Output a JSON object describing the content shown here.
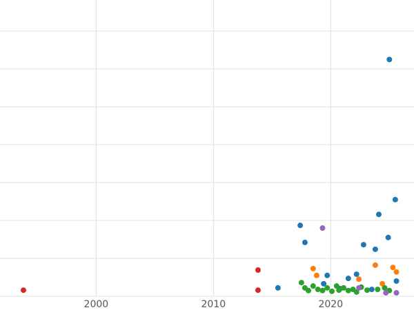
{
  "chart_data": {
    "type": "scatter",
    "title": "",
    "xlabel": "",
    "ylabel": "",
    "grid": true,
    "grid_color": "#e0e0e0",
    "tick_color": "#555555",
    "background": "#ffffff",
    "xlim": [
      1991.8,
      2027.1
    ],
    "ylim": [
      0,
      7.82
    ],
    "x_ticks": [
      {
        "label": "2000",
        "value": 2000
      },
      {
        "label": "2010",
        "value": 2010
      },
      {
        "label": "2020",
        "value": 2020
      }
    ],
    "legend": "none",
    "series": [
      {
        "name": "blue",
        "color": "#1f77b4",
        "points": [
          {
            "x": 2015.5,
            "y": 0.22
          },
          {
            "x": 2025.0,
            "y": 6.25
          },
          {
            "x": 2017.4,
            "y": 1.87
          },
          {
            "x": 2017.8,
            "y": 1.42
          },
          {
            "x": 2022.8,
            "y": 1.36
          },
          {
            "x": 2023.8,
            "y": 1.24
          },
          {
            "x": 2024.1,
            "y": 2.16
          },
          {
            "x": 2025.5,
            "y": 2.55
          },
          {
            "x": 2024.9,
            "y": 1.55
          },
          {
            "x": 2022.2,
            "y": 0.58
          },
          {
            "x": 2021.5,
            "y": 0.47
          },
          {
            "x": 2019.7,
            "y": 0.55
          },
          {
            "x": 2023.5,
            "y": 0.18
          },
          {
            "x": 2025.6,
            "y": 0.4
          },
          {
            "x": 2019.4,
            "y": 0.33
          },
          {
            "x": 2020.8,
            "y": 0.2
          }
        ]
      },
      {
        "name": "orange",
        "color": "#ff7f0e",
        "points": [
          {
            "x": 2018.5,
            "y": 0.73
          },
          {
            "x": 2018.8,
            "y": 0.55
          },
          {
            "x": 2023.8,
            "y": 0.82
          },
          {
            "x": 2025.3,
            "y": 0.76
          },
          {
            "x": 2024.4,
            "y": 0.33
          },
          {
            "x": 2022.4,
            "y": 0.45
          },
          {
            "x": 2025.6,
            "y": 0.64
          }
        ]
      },
      {
        "name": "green",
        "color": "#2ca02c",
        "points": [
          {
            "x": 2017.5,
            "y": 0.36
          },
          {
            "x": 2017.8,
            "y": 0.22
          },
          {
            "x": 2018.1,
            "y": 0.15
          },
          {
            "x": 2018.5,
            "y": 0.27
          },
          {
            "x": 2018.9,
            "y": 0.18
          },
          {
            "x": 2019.3,
            "y": 0.15
          },
          {
            "x": 2019.7,
            "y": 0.22
          },
          {
            "x": 2020.1,
            "y": 0.13
          },
          {
            "x": 2020.5,
            "y": 0.27
          },
          {
            "x": 2020.7,
            "y": 0.16
          },
          {
            "x": 2021.1,
            "y": 0.22
          },
          {
            "x": 2021.5,
            "y": 0.15
          },
          {
            "x": 2021.9,
            "y": 0.18
          },
          {
            "x": 2022.2,
            "y": 0.11
          },
          {
            "x": 2022.6,
            "y": 0.24
          },
          {
            "x": 2023.1,
            "y": 0.16
          },
          {
            "x": 2024.0,
            "y": 0.18
          },
          {
            "x": 2024.6,
            "y": 0.22
          },
          {
            "x": 2025.0,
            "y": 0.15
          }
        ]
      },
      {
        "name": "red",
        "color": "#d62728",
        "points": [
          {
            "x": 1993.8,
            "y": 0.16
          },
          {
            "x": 2013.8,
            "y": 0.69
          },
          {
            "x": 2013.8,
            "y": 0.16
          }
        ]
      },
      {
        "name": "purple",
        "color": "#9467bd",
        "points": [
          {
            "x": 2019.3,
            "y": 1.8
          },
          {
            "x": 2022.4,
            "y": 0.22
          },
          {
            "x": 2024.7,
            "y": 0.09
          },
          {
            "x": 2025.6,
            "y": 0.09
          }
        ]
      }
    ]
  }
}
